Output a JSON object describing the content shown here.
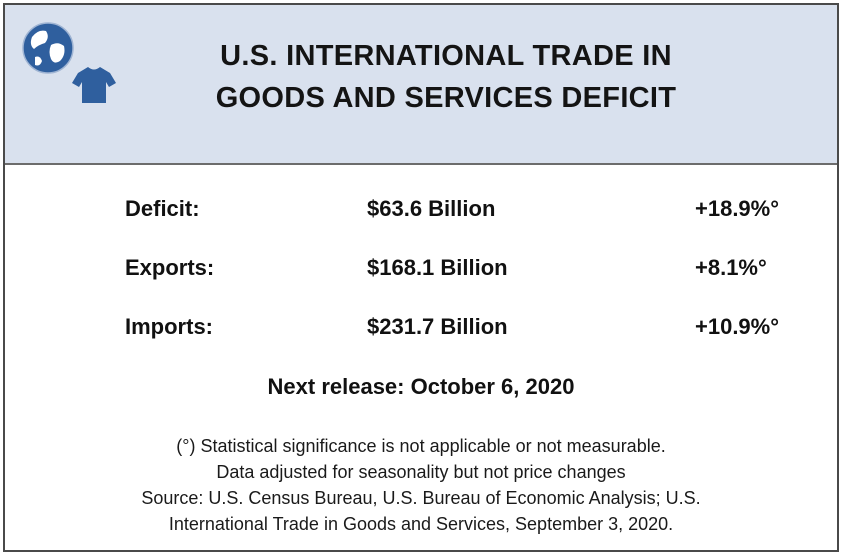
{
  "title": {
    "line1": "U.S. INTERNATIONAL TRADE IN",
    "line2": "GOODS AND SERVICES DEFICIT"
  },
  "logo": {
    "icons": [
      "globe-icon",
      "shirt-icon"
    ],
    "color": "#2f5f9e"
  },
  "rows": [
    {
      "label": "Deficit:",
      "value": "$63.6 Billion",
      "change": "+18.9%°"
    },
    {
      "label": "Exports:",
      "value": "$168.1 Billion",
      "change": "+8.1%°"
    },
    {
      "label": "Imports:",
      "value": "$231.7 Billion",
      "change": "+10.9%°"
    }
  ],
  "next_release": "Next release: October 6, 2020",
  "notes": [
    "(°) Statistical significance is not applicable or not measurable.",
    "Data adjusted for seasonality but not price changes",
    "Source: U.S. Census Bureau, U.S. Bureau of Economic Analysis; U.S.",
    "International Trade in Goods and Services, September 3, 2020."
  ],
  "colors": {
    "header_background": "#d9e1ee",
    "border": "#4a4a4a",
    "text": "#111111"
  }
}
